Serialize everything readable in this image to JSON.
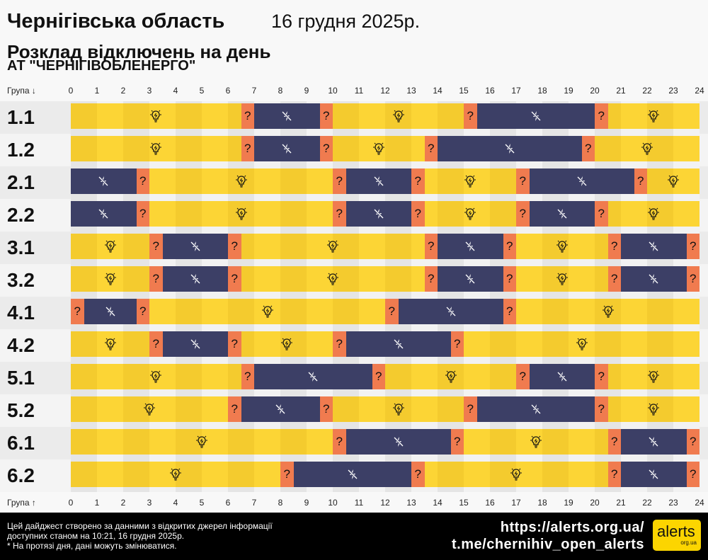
{
  "header": {
    "title": "Чернігівська область",
    "date": "16 грудня 2025р.",
    "subtitle": "Розклад відключень на день",
    "company": "АТ \"ЧЕРНІГІВОБЛЕНЕРГО\""
  },
  "axis": {
    "top_label": "Група ↓",
    "bottom_label": "Група ↑",
    "hours": [
      "0",
      "1",
      "2",
      "3",
      "4",
      "5",
      "6",
      "7",
      "8",
      "9",
      "10",
      "11",
      "12",
      "13",
      "14",
      "15",
      "16",
      "17",
      "18",
      "19",
      "20",
      "21",
      "22",
      "23",
      "24"
    ]
  },
  "colors": {
    "on": "#fcd535",
    "off": "#3c3f66",
    "maybe": "#f07b4f"
  },
  "icons": {
    "on": "lightbulb-icon",
    "off": "power-off-icon",
    "maybe": "question-mark"
  },
  "maybe_symbol": "?",
  "groups": [
    {
      "name": "1.1",
      "segments": [
        [
          "on",
          0,
          6.5
        ],
        [
          "maybe",
          6.5,
          7
        ],
        [
          "off",
          7,
          9.5
        ],
        [
          "maybe",
          9.5,
          10
        ],
        [
          "on",
          10,
          15
        ],
        [
          "maybe",
          15,
          15.5
        ],
        [
          "off",
          15.5,
          20
        ],
        [
          "maybe",
          20,
          20.5
        ],
        [
          "on",
          20.5,
          24
        ]
      ]
    },
    {
      "name": "1.2",
      "segments": [
        [
          "on",
          0,
          6.5
        ],
        [
          "maybe",
          6.5,
          7
        ],
        [
          "off",
          7,
          9.5
        ],
        [
          "maybe",
          9.5,
          10
        ],
        [
          "on",
          10,
          13.5
        ],
        [
          "maybe",
          13.5,
          14
        ],
        [
          "off",
          14,
          19.5
        ],
        [
          "maybe",
          19.5,
          20
        ],
        [
          "on",
          20,
          24
        ]
      ]
    },
    {
      "name": "2.1",
      "segments": [
        [
          "off",
          0,
          2.5
        ],
        [
          "maybe",
          2.5,
          3
        ],
        [
          "on",
          3,
          10
        ],
        [
          "maybe",
          10,
          10.5
        ],
        [
          "off",
          10.5,
          13
        ],
        [
          "maybe",
          13,
          13.5
        ],
        [
          "on",
          13.5,
          17
        ],
        [
          "maybe",
          17,
          17.5
        ],
        [
          "off",
          17.5,
          21.5
        ],
        [
          "maybe",
          21.5,
          22
        ],
        [
          "on",
          22,
          24
        ]
      ]
    },
    {
      "name": "2.2",
      "segments": [
        [
          "off",
          0,
          2.5
        ],
        [
          "maybe",
          2.5,
          3
        ],
        [
          "on",
          3,
          10
        ],
        [
          "maybe",
          10,
          10.5
        ],
        [
          "off",
          10.5,
          13
        ],
        [
          "maybe",
          13,
          13.5
        ],
        [
          "on",
          13.5,
          17
        ],
        [
          "maybe",
          17,
          17.5
        ],
        [
          "off",
          17.5,
          20
        ],
        [
          "maybe",
          20,
          20.5
        ],
        [
          "on",
          20.5,
          24
        ]
      ]
    },
    {
      "name": "3.1",
      "segments": [
        [
          "on",
          0,
          3
        ],
        [
          "maybe",
          3,
          3.5
        ],
        [
          "off",
          3.5,
          6
        ],
        [
          "maybe",
          6,
          6.5
        ],
        [
          "on",
          6.5,
          13.5
        ],
        [
          "maybe",
          13.5,
          14
        ],
        [
          "off",
          14,
          16.5
        ],
        [
          "maybe",
          16.5,
          17
        ],
        [
          "on",
          17,
          20.5
        ],
        [
          "maybe",
          20.5,
          21
        ],
        [
          "off",
          21,
          23.5
        ],
        [
          "maybe",
          23.5,
          24
        ]
      ]
    },
    {
      "name": "3.2",
      "segments": [
        [
          "on",
          0,
          3
        ],
        [
          "maybe",
          3,
          3.5
        ],
        [
          "off",
          3.5,
          6
        ],
        [
          "maybe",
          6,
          6.5
        ],
        [
          "on",
          6.5,
          13.5
        ],
        [
          "maybe",
          13.5,
          14
        ],
        [
          "off",
          14,
          16.5
        ],
        [
          "maybe",
          16.5,
          17
        ],
        [
          "on",
          17,
          20.5
        ],
        [
          "maybe",
          20.5,
          21
        ],
        [
          "off",
          21,
          23.5
        ],
        [
          "maybe",
          23.5,
          24
        ]
      ]
    },
    {
      "name": "4.1",
      "segments": [
        [
          "maybe",
          0,
          0.5
        ],
        [
          "off",
          0.5,
          2.5
        ],
        [
          "maybe",
          2.5,
          3
        ],
        [
          "on",
          3,
          12
        ],
        [
          "maybe",
          12,
          12.5
        ],
        [
          "off",
          12.5,
          16.5
        ],
        [
          "maybe",
          16.5,
          17
        ],
        [
          "on",
          17,
          24
        ]
      ]
    },
    {
      "name": "4.2",
      "segments": [
        [
          "on",
          0,
          3
        ],
        [
          "maybe",
          3,
          3.5
        ],
        [
          "off",
          3.5,
          6
        ],
        [
          "maybe",
          6,
          6.5
        ],
        [
          "on",
          6.5,
          10
        ],
        [
          "maybe",
          10,
          10.5
        ],
        [
          "off",
          10.5,
          14.5
        ],
        [
          "maybe",
          14.5,
          15
        ],
        [
          "on",
          15,
          24
        ]
      ]
    },
    {
      "name": "5.1",
      "segments": [
        [
          "on",
          0,
          6.5
        ],
        [
          "maybe",
          6.5,
          7
        ],
        [
          "off",
          7,
          11.5
        ],
        [
          "maybe",
          11.5,
          12
        ],
        [
          "on",
          12,
          17
        ],
        [
          "maybe",
          17,
          17.5
        ],
        [
          "off",
          17.5,
          20
        ],
        [
          "maybe",
          20,
          20.5
        ],
        [
          "on",
          20.5,
          24
        ]
      ]
    },
    {
      "name": "5.2",
      "segments": [
        [
          "on",
          0,
          6
        ],
        [
          "maybe",
          6,
          6.5
        ],
        [
          "off",
          6.5,
          9.5
        ],
        [
          "maybe",
          9.5,
          10
        ],
        [
          "on",
          10,
          15
        ],
        [
          "maybe",
          15,
          15.5
        ],
        [
          "off",
          15.5,
          20
        ],
        [
          "maybe",
          20,
          20.5
        ],
        [
          "on",
          20.5,
          24
        ]
      ]
    },
    {
      "name": "6.1",
      "segments": [
        [
          "on",
          0,
          10
        ],
        [
          "maybe",
          10,
          10.5
        ],
        [
          "off",
          10.5,
          14.5
        ],
        [
          "maybe",
          14.5,
          15
        ],
        [
          "on",
          15,
          20.5
        ],
        [
          "maybe",
          20.5,
          21
        ],
        [
          "off",
          21,
          23.5
        ],
        [
          "maybe",
          23.5,
          24
        ]
      ]
    },
    {
      "name": "6.2",
      "segments": [
        [
          "on",
          0,
          8
        ],
        [
          "maybe",
          8,
          8.5
        ],
        [
          "off",
          8.5,
          13
        ],
        [
          "maybe",
          13,
          13.5
        ],
        [
          "on",
          13.5,
          20.5
        ],
        [
          "maybe",
          20.5,
          21
        ],
        [
          "off",
          21,
          23.5
        ],
        [
          "maybe",
          23.5,
          24
        ]
      ]
    }
  ],
  "footer": {
    "line1": "Цей дайджест створено за данними з відкритих джерел інформації",
    "line2": "доступних станом на 10:21, 16 грудня 2025р.",
    "line3": "* На протязі дня, дані можуть змінюватися.",
    "link1": "https://alerts.org.ua/",
    "link2": "t.me/chernihiv_open_alerts",
    "logo_main": "alerts",
    "logo_sub": "org.ua"
  }
}
